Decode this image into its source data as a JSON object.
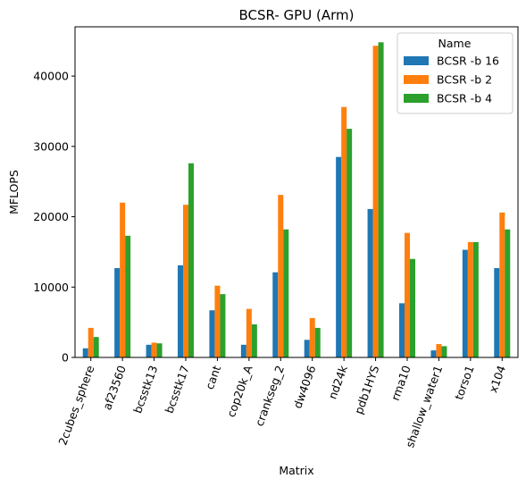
{
  "chart_data": {
    "type": "bar",
    "title": "BCSR- GPU (Arm)",
    "xlabel": "Matrix",
    "ylabel": "MFLOPS",
    "ylim": [
      0,
      47000
    ],
    "yticks": [
      0,
      10000,
      20000,
      30000,
      40000
    ],
    "grid": false,
    "legend": {
      "title": "Name",
      "placement": "top-right"
    },
    "categories": [
      "2cubes_sphere",
      "af23560",
      "bcsstk13",
      "bcsstk17",
      "cant",
      "cop20k_A",
      "crankseg_2",
      "dw4096",
      "nd24k",
      "pdb1HYS",
      "rma10",
      "shallow_water1",
      "torso1",
      "x104"
    ],
    "series": [
      {
        "name": "BCSR -b 16",
        "color": "#1f77b4",
        "values": [
          1300,
          12700,
          1800,
          13100,
          6700,
          1800,
          12100,
          2500,
          28500,
          21100,
          7700,
          1000,
          15300,
          12700
        ]
      },
      {
        "name": "BCSR -b 2",
        "color": "#ff7f0e",
        "values": [
          4200,
          22000,
          2100,
          21700,
          10200,
          6900,
          23100,
          5600,
          35600,
          44300,
          17700,
          1900,
          16400,
          20600
        ]
      },
      {
        "name": "BCSR -b 4",
        "color": "#2ca02c",
        "values": [
          2900,
          17300,
          2000,
          27600,
          9000,
          4700,
          18200,
          4200,
          32500,
          44800,
          14000,
          1600,
          16400,
          18200
        ]
      }
    ]
  }
}
